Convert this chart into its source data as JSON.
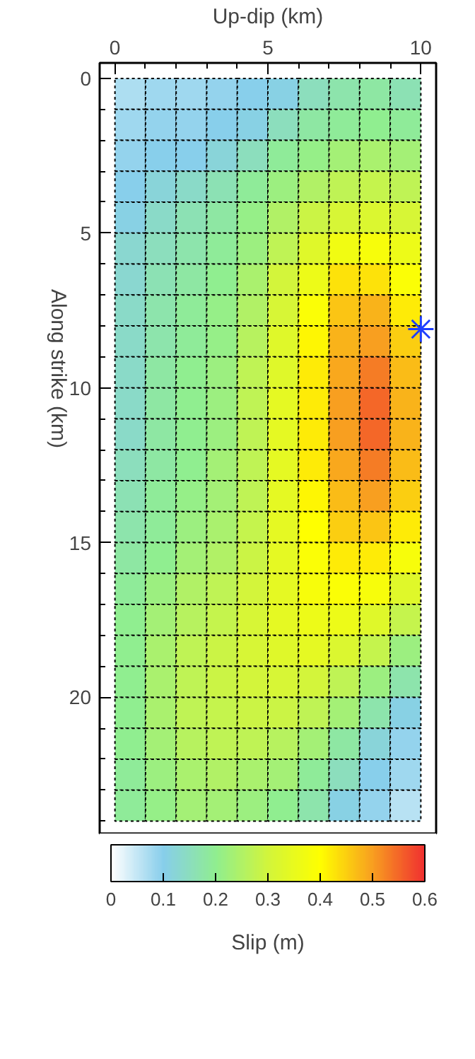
{
  "chart_data": {
    "type": "heatmap",
    "xlabel": "Up-dip (km)",
    "ylabel": "Along strike (km)",
    "clabel": "Slip (m)",
    "x": [
      0.5,
      1.5,
      2.5,
      3.5,
      4.5,
      5.5,
      6.5,
      7.5,
      8.5,
      9.5
    ],
    "y": [
      0.5,
      1.5,
      2.5,
      3.5,
      4.5,
      5.5,
      6.5,
      7.5,
      8.5,
      9.5,
      10.5,
      11.5,
      12.5,
      13.5,
      14.5,
      15.5,
      16.5,
      17.5,
      18.5,
      19.5,
      20.5,
      21.5,
      22.5,
      23.5
    ],
    "cells": [
      [
        0.07,
        0.08,
        0.08,
        0.09,
        0.1,
        0.11,
        0.15,
        0.17,
        0.18,
        0.16
      ],
      [
        0.08,
        0.09,
        0.09,
        0.1,
        0.11,
        0.15,
        0.18,
        0.19,
        0.2,
        0.19
      ],
      [
        0.09,
        0.1,
        0.1,
        0.12,
        0.15,
        0.19,
        0.21,
        0.23,
        0.24,
        0.23
      ],
      [
        0.1,
        0.12,
        0.14,
        0.16,
        0.19,
        0.22,
        0.25,
        0.27,
        0.28,
        0.27
      ],
      [
        0.11,
        0.14,
        0.16,
        0.18,
        0.21,
        0.25,
        0.29,
        0.31,
        0.32,
        0.31
      ],
      [
        0.13,
        0.15,
        0.17,
        0.19,
        0.22,
        0.27,
        0.33,
        0.37,
        0.38,
        0.36
      ],
      [
        0.13,
        0.16,
        0.18,
        0.2,
        0.24,
        0.3,
        0.36,
        0.43,
        0.43,
        0.39
      ],
      [
        0.14,
        0.17,
        0.19,
        0.21,
        0.25,
        0.31,
        0.39,
        0.46,
        0.48,
        0.42
      ],
      [
        0.14,
        0.17,
        0.19,
        0.21,
        0.26,
        0.33,
        0.41,
        0.48,
        0.5,
        0.45
      ],
      [
        0.14,
        0.18,
        0.2,
        0.22,
        0.27,
        0.33,
        0.42,
        0.49,
        0.53,
        0.47
      ],
      [
        0.14,
        0.18,
        0.2,
        0.22,
        0.27,
        0.34,
        0.42,
        0.5,
        0.55,
        0.48
      ],
      [
        0.14,
        0.18,
        0.2,
        0.22,
        0.27,
        0.34,
        0.42,
        0.5,
        0.55,
        0.48
      ],
      [
        0.15,
        0.18,
        0.2,
        0.23,
        0.27,
        0.34,
        0.42,
        0.49,
        0.53,
        0.47
      ],
      [
        0.16,
        0.19,
        0.21,
        0.23,
        0.27,
        0.34,
        0.41,
        0.47,
        0.5,
        0.45
      ],
      [
        0.17,
        0.19,
        0.22,
        0.24,
        0.28,
        0.34,
        0.4,
        0.45,
        0.46,
        0.42
      ],
      [
        0.18,
        0.2,
        0.23,
        0.25,
        0.29,
        0.34,
        0.39,
        0.42,
        0.42,
        0.38
      ],
      [
        0.19,
        0.22,
        0.25,
        0.27,
        0.3,
        0.34,
        0.38,
        0.39,
        0.38,
        0.33
      ],
      [
        0.2,
        0.23,
        0.26,
        0.28,
        0.31,
        0.34,
        0.36,
        0.36,
        0.33,
        0.28
      ],
      [
        0.2,
        0.24,
        0.27,
        0.29,
        0.31,
        0.33,
        0.34,
        0.32,
        0.28,
        0.22
      ],
      [
        0.2,
        0.24,
        0.27,
        0.29,
        0.3,
        0.31,
        0.3,
        0.27,
        0.22,
        0.17
      ],
      [
        0.2,
        0.24,
        0.27,
        0.28,
        0.29,
        0.29,
        0.27,
        0.23,
        0.17,
        0.11
      ],
      [
        0.2,
        0.23,
        0.26,
        0.27,
        0.27,
        0.26,
        0.23,
        0.18,
        0.12,
        0.09
      ],
      [
        0.19,
        0.22,
        0.24,
        0.25,
        0.24,
        0.23,
        0.19,
        0.15,
        0.1,
        0.08
      ],
      [
        0.19,
        0.21,
        0.23,
        0.23,
        0.22,
        0.2,
        0.17,
        0.11,
        0.09,
        0.06
      ]
    ],
    "xlim": [
      -0.5,
      10.5
    ],
    "ylim": [
      24.4,
      -0.5
    ],
    "xticks": [
      0,
      5,
      10
    ],
    "yticks": [
      0,
      5,
      10,
      15,
      20
    ],
    "clim": [
      0,
      0.6
    ],
    "cticks": [
      0,
      0.1,
      0.2,
      0.3,
      0.4,
      0.5,
      0.6
    ],
    "series": [
      {
        "type": "scatter",
        "marker": "cross",
        "color": "#1f3fff",
        "x": [
          10
        ],
        "values": [
          8.1
        ]
      }
    ]
  }
}
